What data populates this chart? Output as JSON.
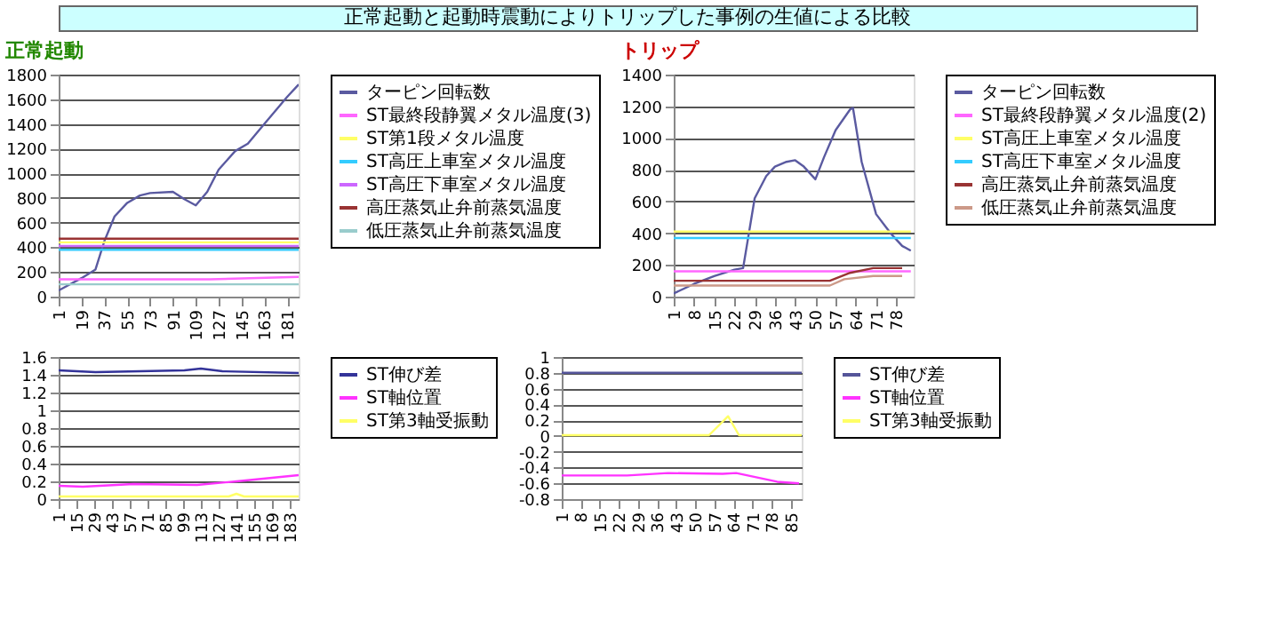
{
  "chart_data": [
    {
      "type": "other",
      "title": "正常起動と起動時震動によりトリップした事例の生値による比較"
    },
    {
      "type": "line",
      "subtitle": "正常起動",
      "xlim": [
        1,
        190
      ],
      "xticks": [
        1,
        19,
        37,
        55,
        73,
        91,
        109,
        127,
        145,
        163,
        181
      ],
      "ylim": [
        0,
        1800
      ],
      "yticks": [
        0,
        200,
        400,
        600,
        800,
        1000,
        1200,
        1400,
        1600,
        1800
      ],
      "grid": "y",
      "legend": "right",
      "marker": "none",
      "line_style": "solid",
      "series": [
        {
          "name": "ターピン回転数",
          "color": "#5a5aa0",
          "x": [
            1,
            19,
            30,
            37,
            45,
            55,
            65,
            73,
            91,
            100,
            109,
            118,
            127,
            140,
            150,
            163,
            181,
            190
          ],
          "values": [
            50,
            150,
            220,
            450,
            650,
            760,
            820,
            840,
            850,
            790,
            740,
            850,
            1030,
            1180,
            1240,
            1400,
            1620,
            1720
          ]
        },
        {
          "name": "ST最終段静翼メタル温度(3)",
          "color": "#ff66ff",
          "x": [
            1,
            120,
            190
          ],
          "values": [
            140,
            140,
            160
          ]
        },
        {
          "name": "ST第1段メタル温度",
          "color": "#ffff66",
          "x": [
            1,
            190
          ],
          "values": [
            440,
            440
          ]
        },
        {
          "name": "ST高圧上車室メタル温度",
          "color": "#33ccff",
          "x": [
            1,
            190
          ],
          "values": [
            380,
            380
          ]
        },
        {
          "name": "ST高圧下車室メタル温度",
          "color": "#cc66ff",
          "x": [
            1,
            190
          ],
          "values": [
            410,
            410
          ]
        },
        {
          "name": "高圧蒸気止弁前蒸気温度",
          "color": "#993333",
          "x": [
            1,
            190
          ],
          "values": [
            470,
            470
          ]
        },
        {
          "name": "低圧蒸気止弁前蒸気温度",
          "color": "#99cccc",
          "x": [
            1,
            190
          ],
          "values": [
            100,
            100
          ]
        }
      ]
    },
    {
      "type": "line",
      "subtitle": "トリップ",
      "xlim": [
        1,
        84
      ],
      "xticks": [
        1,
        8,
        15,
        22,
        29,
        36,
        43,
        50,
        57,
        64,
        71,
        78
      ],
      "ylim": [
        0,
        1400
      ],
      "yticks": [
        0,
        200,
        400,
        600,
        800,
        1000,
        1200,
        1400
      ],
      "grid": "y",
      "legend": "right",
      "marker": "none",
      "line_style": "solid",
      "series": [
        {
          "name": "ターピン回転数",
          "color": "#5a5aa0",
          "x": [
            1,
            8,
            15,
            22,
            25,
            27,
            29,
            33,
            36,
            40,
            43,
            46,
            50,
            53,
            57,
            62,
            63,
            66,
            71,
            76,
            80,
            83
          ],
          "values": [
            20,
            80,
            130,
            170,
            180,
            400,
            620,
            760,
            820,
            850,
            860,
            820,
            740,
            880,
            1050,
            1180,
            1190,
            850,
            520,
            400,
            320,
            290
          ]
        },
        {
          "name": "ST最終段静翼メタル温度(2)",
          "color": "#ff66ff",
          "x": [
            1,
            83
          ],
          "values": [
            160,
            160
          ]
        },
        {
          "name": "ST高圧上車室メタル温度",
          "color": "#ffff66",
          "x": [
            1,
            83
          ],
          "values": [
            410,
            410
          ]
        },
        {
          "name": "ST高圧下車室メタル温度",
          "color": "#33ccff",
          "x": [
            1,
            83
          ],
          "values": [
            370,
            370
          ]
        },
        {
          "name": "高圧蒸気止弁前蒸気温度",
          "color": "#993333",
          "x": [
            1,
            55,
            62,
            70,
            80
          ],
          "values": [
            100,
            100,
            150,
            180,
            180
          ]
        },
        {
          "name": "低圧蒸気止弁前蒸気温度",
          "color": "#cc9988",
          "x": [
            1,
            55,
            60,
            70,
            80
          ],
          "values": [
            70,
            70,
            110,
            130,
            130
          ]
        }
      ]
    },
    {
      "type": "line",
      "xlim": [
        1,
        190
      ],
      "xticks": [
        1,
        15,
        29,
        43,
        57,
        71,
        85,
        99,
        113,
        127,
        141,
        155,
        169,
        183
      ],
      "ylim": [
        0,
        1.6
      ],
      "yticks": [
        0,
        0.2,
        0.4,
        0.6,
        0.8,
        1,
        1.2,
        1.4,
        1.6
      ],
      "grid": "y",
      "legend": "right",
      "marker": "none",
      "line_style": "solid",
      "series": [
        {
          "name": "ST伸び差",
          "color": "#333399",
          "x": [
            1,
            30,
            100,
            113,
            130,
            190
          ],
          "values": [
            1.45,
            1.43,
            1.45,
            1.47,
            1.44,
            1.42
          ]
        },
        {
          "name": "ST軸位置",
          "color": "#ff33ff",
          "x": [
            1,
            20,
            60,
            110,
            141,
            190
          ],
          "values": [
            0.15,
            0.14,
            0.17,
            0.16,
            0.2,
            0.27
          ]
        },
        {
          "name": "ST第3軸受振動",
          "color": "#ffff66",
          "x": [
            1,
            135,
            141,
            147,
            190
          ],
          "values": [
            0.03,
            0.03,
            0.06,
            0.03,
            0.03
          ]
        }
      ]
    },
    {
      "type": "line",
      "xlim": [
        1,
        89
      ],
      "xticks": [
        1,
        8,
        15,
        22,
        29,
        36,
        43,
        50,
        57,
        64,
        71,
        78,
        85
      ],
      "ylim": [
        -0.8,
        1
      ],
      "yticks": [
        -0.8,
        -0.6,
        -0.4,
        -0.2,
        0,
        0.2,
        0.4,
        0.6,
        0.8,
        1
      ],
      "grid": "y",
      "legend": "right",
      "marker": "none",
      "line_style": "solid",
      "series": [
        {
          "name": "ST伸び差",
          "color": "#555599",
          "x": [
            1,
            89
          ],
          "values": [
            0.8,
            0.8
          ]
        },
        {
          "name": "ST軸位置",
          "color": "#ff33ff",
          "x": [
            1,
            25,
            40,
            60,
            65,
            80,
            88
          ],
          "values": [
            -0.5,
            -0.5,
            -0.47,
            -0.48,
            -0.47,
            -0.58,
            -0.6
          ]
        },
        {
          "name": "ST第3軸受振動",
          "color": "#ffff66",
          "x": [
            1,
            55,
            62,
            66,
            89
          ],
          "values": [
            0.01,
            0.01,
            0.25,
            0.01,
            0.01
          ]
        }
      ]
    }
  ]
}
